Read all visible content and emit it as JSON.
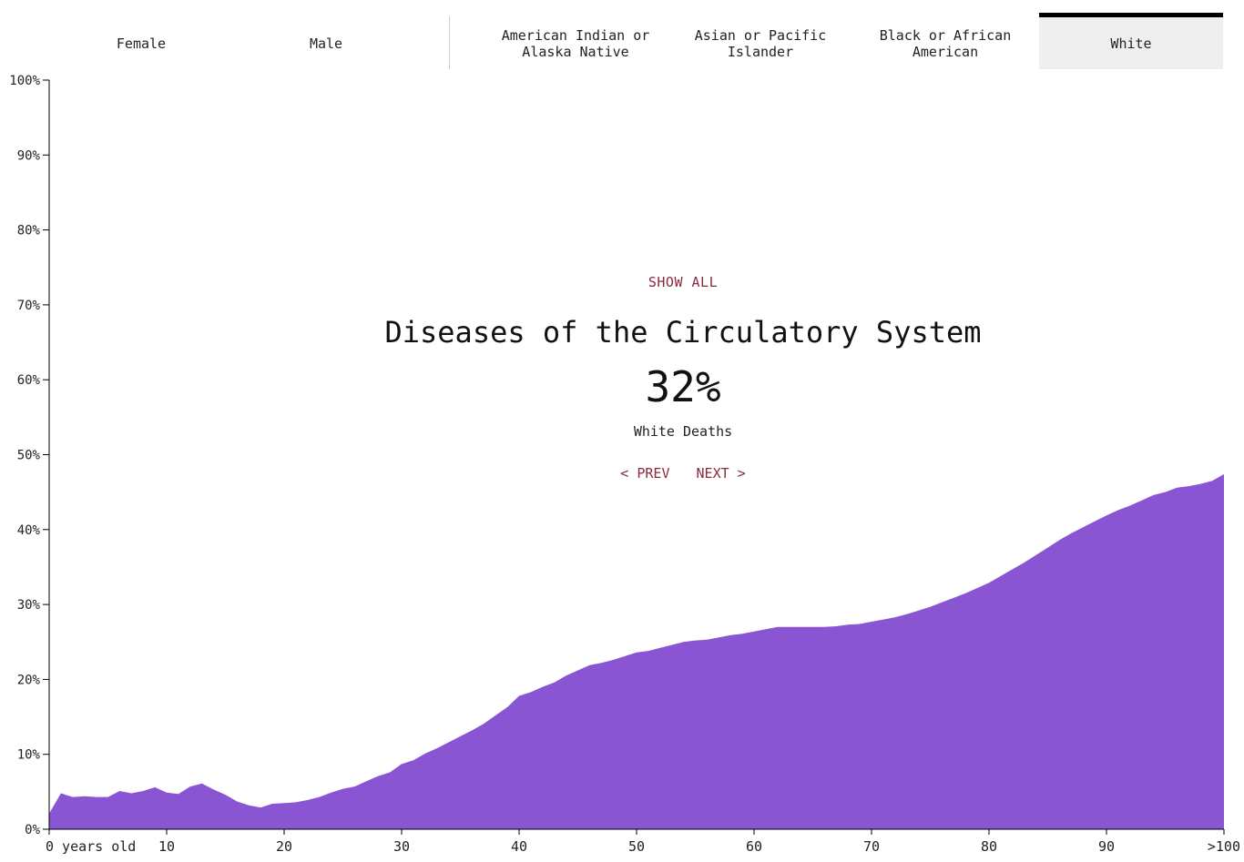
{
  "tabs": {
    "sex": [
      {
        "label": "Female",
        "active": false
      },
      {
        "label": "Male",
        "active": false
      }
    ],
    "race": [
      {
        "label": "American Indian or Alaska Native",
        "active": false
      },
      {
        "label": "Asian or Pacific Islander",
        "active": false
      },
      {
        "label": "Black or African American",
        "active": false
      },
      {
        "label": "White",
        "active": true
      }
    ]
  },
  "overlay": {
    "show_all_label": "SHOW ALL",
    "cause_title": "Diseases of the Circulatory System",
    "percent": "32%",
    "subtitle": "White Deaths",
    "prev_label": "< PREV",
    "next_label": "NEXT >"
  },
  "colors": {
    "area_fill": "#8a55d3",
    "accent_link": "#8b2a3e",
    "active_tab_bg": "#efefef",
    "active_tab_border": "#000000"
  },
  "chart_data": {
    "type": "area",
    "title": "",
    "xlabel": "",
    "ylabel": "",
    "xlim": [
      0,
      100
    ],
    "ylim": [
      0,
      100
    ],
    "grid": false,
    "x_ticks": [
      0,
      10,
      20,
      30,
      40,
      50,
      60,
      70,
      80,
      90,
      100
    ],
    "x_tick_labels": [
      "0 years old",
      "10",
      "20",
      "30",
      "40",
      "50",
      "60",
      "70",
      "80",
      "90",
      ">100"
    ],
    "y_ticks": [
      0,
      10,
      20,
      30,
      40,
      50,
      60,
      70,
      80,
      90,
      100
    ],
    "y_tick_labels": [
      "0%",
      "10%",
      "20%",
      "30%",
      "40%",
      "50%",
      "60%",
      "70%",
      "80%",
      "90%",
      "100%"
    ],
    "series": [
      {
        "x": [
          0,
          1,
          2,
          3,
          4,
          5,
          6,
          7,
          8,
          9,
          10,
          11,
          12,
          13,
          14,
          15,
          16,
          17,
          18,
          19,
          20,
          21,
          22,
          23,
          24,
          25,
          26,
          27,
          28,
          29,
          30,
          31,
          32,
          33,
          34,
          35,
          36,
          37,
          38,
          39,
          40,
          41,
          42,
          43,
          44,
          45,
          46,
          47,
          48,
          49,
          50,
          51,
          52,
          53,
          54,
          55,
          56,
          57,
          58,
          59,
          60,
          61,
          62,
          63,
          64,
          65,
          66,
          67,
          68,
          69,
          70,
          71,
          72,
          73,
          74,
          75,
          76,
          77,
          78,
          79,
          80,
          81,
          82,
          83,
          84,
          85,
          86,
          87,
          88,
          89,
          90,
          91,
          92,
          93,
          94,
          95,
          96,
          97,
          98,
          99,
          100
        ],
        "values": [
          2.1,
          4.8,
          4.3,
          4.4,
          4.3,
          4.3,
          5.1,
          4.8,
          5.1,
          5.6,
          4.9,
          4.7,
          5.7,
          6.1,
          5.3,
          4.6,
          3.7,
          3.2,
          2.9,
          3.4,
          3.5,
          3.6,
          3.9,
          4.3,
          4.9,
          5.4,
          5.7,
          6.4,
          7.1,
          7.6,
          8.7,
          9.2,
          10.1,
          10.8,
          11.6,
          12.4,
          13.2,
          14.1,
          15.2,
          16.3,
          17.8,
          18.3,
          19.0,
          19.6,
          20.5,
          21.2,
          21.9,
          22.2,
          22.6,
          23.1,
          23.6,
          23.8,
          24.2,
          24.6,
          25.0,
          25.2,
          25.3,
          25.6,
          25.9,
          26.1,
          26.4,
          26.7,
          27.0,
          27.0,
          27.0,
          27.0,
          27.0,
          27.1,
          27.3,
          27.4,
          27.7,
          28.0,
          28.3,
          28.7,
          29.2,
          29.7,
          30.3,
          30.9,
          31.5,
          32.2,
          32.9,
          33.8,
          34.7,
          35.6,
          36.6,
          37.6,
          38.6,
          39.5,
          40.3,
          41.1,
          41.9,
          42.6,
          43.2,
          43.9,
          44.6,
          45.0,
          45.6,
          45.8,
          46.1,
          46.5,
          47.4
        ]
      }
    ]
  }
}
